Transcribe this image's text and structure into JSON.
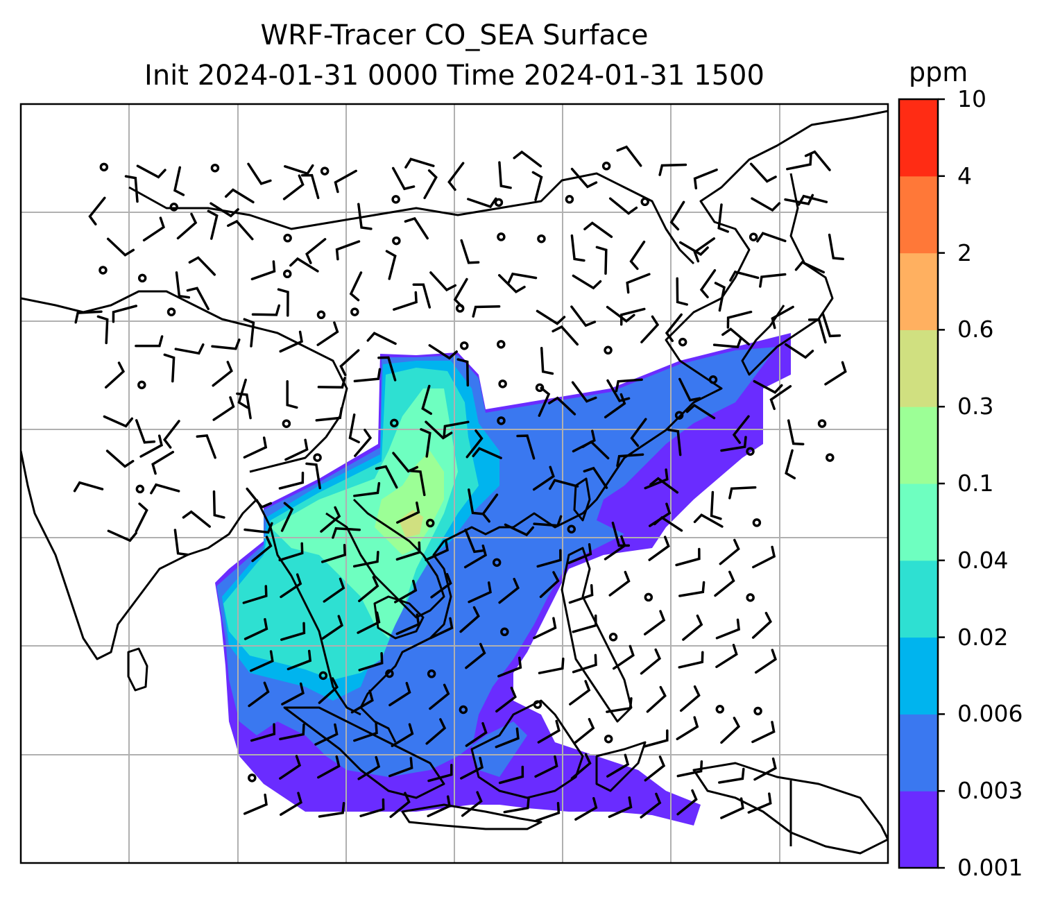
{
  "title_line1": "WRF-Tracer CO_SEA Surface",
  "title_line2": "Init 2024-01-31 0000 Time 2024-01-31 1500",
  "colorbar": {
    "unit": "ppm",
    "levels": [
      "0.001",
      "0.003",
      "0.006",
      "0.02",
      "0.04",
      "0.1",
      "0.3",
      "0.6",
      "2",
      "4",
      "10"
    ],
    "colors": [
      "#6a2cff",
      "#3a78f0",
      "#00b4ee",
      "#2ee0d2",
      "#6effc0",
      "#9cff96",
      "#d0e080",
      "#ffb060",
      "#ff7838",
      "#ff2c14"
    ]
  },
  "map": {
    "field_name": "CO_SEA",
    "wind_barbs": "shown",
    "coastlines": "shown",
    "gridlines": "shown"
  }
}
